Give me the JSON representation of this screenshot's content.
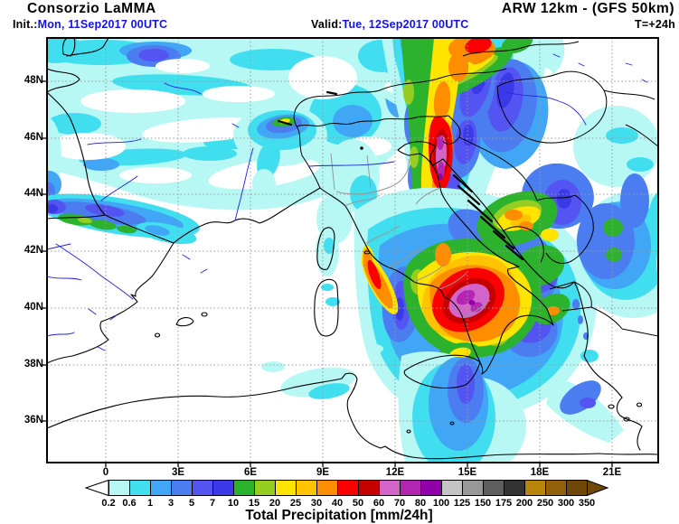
{
  "header": {
    "brand": "Consorzio LaMMA",
    "model_title": "ARW 12km - (GFS 50km)",
    "init_label": "Init.:",
    "init_value": "Mon, 11Sep2017 00UTC",
    "valid_label": "Valid:",
    "valid_value": "Tue, 12Sep2017 00UTC",
    "lead_time": "T=+24h",
    "date_color": "#1212EE"
  },
  "map": {
    "lat_labels": [
      "48N",
      "46N",
      "44N",
      "42N",
      "40N",
      "38N",
      "36N"
    ],
    "lon_labels": [
      "0",
      "3E",
      "6E",
      "9E",
      "12E",
      "15E",
      "18E",
      "21E"
    ]
  },
  "colorbar": {
    "title": "Total Precipitation [mm/24h]",
    "tick_labels": [
      "0.2",
      "0.6",
      "1",
      "3",
      "5",
      "7",
      "10",
      "15",
      "20",
      "25",
      "30",
      "40",
      "50",
      "60",
      "70",
      "80",
      "100",
      "125",
      "150",
      "175",
      "200",
      "250",
      "300",
      "350"
    ],
    "segment_colors": [
      "#B7F8F4",
      "#41DEF0",
      "#41A6F5",
      "#4B7CF0",
      "#5454F2",
      "#3A3AE8",
      "#2DB22D",
      "#95CE21",
      "#FFE400",
      "#FFC300",
      "#FF8D00",
      "#FA0000",
      "#C40000",
      "#D365CA",
      "#B226B2",
      "#9000A8",
      "#C4C4C4",
      "#989898",
      "#5E5E5E",
      "#333333",
      "#B8860B",
      "#90600A",
      "#6F4808"
    ],
    "under_color": "#FFFFFF",
    "over_color": "#6F4808"
  }
}
